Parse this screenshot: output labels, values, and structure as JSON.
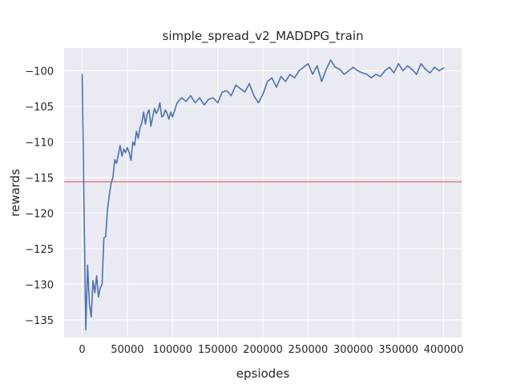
{
  "chart_data": {
    "type": "line",
    "title": "simple_spread_v2_MADDPG_train",
    "xlabel": "epsiodes",
    "ylabel": "rewards",
    "xlim": [
      -20000,
      420000
    ],
    "ylim": [
      -137.5,
      -96.8
    ],
    "xticks": [
      0,
      50000,
      100000,
      150000,
      200000,
      250000,
      300000,
      350000,
      400000
    ],
    "xtick_labels": [
      "0",
      "50000",
      "100000",
      "150000",
      "200000",
      "250000",
      "300000",
      "350000",
      "400000"
    ],
    "yticks": [
      -135,
      -130,
      -125,
      -120,
      -115,
      -110,
      -105,
      -100
    ],
    "ytick_labels": [
      "−135",
      "−130",
      "−125",
      "−120",
      "−115",
      "−110",
      "−105",
      "−100"
    ],
    "grid": true,
    "background_color": "#eaeaf2",
    "line_color": "#4c72b0",
    "reference_line": {
      "y": -115.6,
      "color": "#e03030"
    },
    "series": [
      {
        "x": [
          0,
          2000,
          4000,
          6000,
          8000,
          10000,
          12000,
          14000,
          16000,
          18000,
          20000,
          22000,
          24000,
          26000,
          28000,
          30000,
          32000,
          34000,
          36000,
          38000,
          40000,
          42000,
          44000,
          46000,
          48000,
          50000,
          52000,
          54000,
          56000,
          58000,
          60000,
          62000,
          64000,
          66000,
          68000,
          70000,
          72000,
          74000,
          76000,
          78000,
          80000,
          82000,
          84000,
          86000,
          88000,
          90000,
          92000,
          94000,
          96000,
          98000,
          100000,
          105000,
          110000,
          115000,
          120000,
          125000,
          130000,
          135000,
          140000,
          145000,
          150000,
          155000,
          160000,
          165000,
          170000,
          175000,
          180000,
          185000,
          190000,
          195000,
          200000,
          205000,
          210000,
          215000,
          220000,
          225000,
          230000,
          235000,
          240000,
          245000,
          250000,
          255000,
          260000,
          265000,
          270000,
          275000,
          280000,
          285000,
          290000,
          295000,
          300000,
          305000,
          310000,
          315000,
          320000,
          325000,
          330000,
          335000,
          340000,
          345000,
          350000,
          355000,
          360000,
          365000,
          370000,
          375000,
          380000,
          385000,
          390000,
          395000,
          400000
        ],
        "y": [
          -100.5,
          -119.0,
          -136.4,
          -127.3,
          -132.8,
          -134.6,
          -129.5,
          -131.2,
          -128.8,
          -131.8,
          -130.5,
          -130.0,
          -123.5,
          -123.3,
          -119.5,
          -117.5,
          -115.8,
          -115.0,
          -112.5,
          -113.0,
          -111.8,
          -110.5,
          -112.0,
          -111.0,
          -111.5,
          -110.8,
          -111.5,
          -112.6,
          -110.0,
          -110.5,
          -108.5,
          -109.5,
          -108.0,
          -107.3,
          -105.8,
          -107.5,
          -106.0,
          -105.5,
          -107.8,
          -106.5,
          -105.3,
          -106.0,
          -105.5,
          -104.5,
          -106.5,
          -106.3,
          -105.5,
          -106.0,
          -106.8,
          -105.8,
          -106.5,
          -104.5,
          -103.8,
          -104.3,
          -103.5,
          -104.5,
          -103.8,
          -104.8,
          -104.0,
          -103.8,
          -104.5,
          -103.0,
          -102.8,
          -103.5,
          -102.0,
          -102.5,
          -103.0,
          -101.8,
          -103.5,
          -104.5,
          -103.3,
          -101.5,
          -101.0,
          -102.3,
          -100.8,
          -101.5,
          -100.5,
          -101.0,
          -100.0,
          -99.5,
          -99.0,
          -100.5,
          -99.3,
          -101.5,
          -99.8,
          -98.5,
          -99.5,
          -99.8,
          -100.5,
          -100.0,
          -99.5,
          -100.0,
          -100.3,
          -100.5,
          -101.0,
          -100.5,
          -100.8,
          -100.0,
          -99.5,
          -100.3,
          -99.0,
          -100.0,
          -99.3,
          -99.8,
          -100.5,
          -99.0,
          -99.8,
          -100.3,
          -99.5,
          -100.0,
          -99.6
        ]
      }
    ]
  }
}
